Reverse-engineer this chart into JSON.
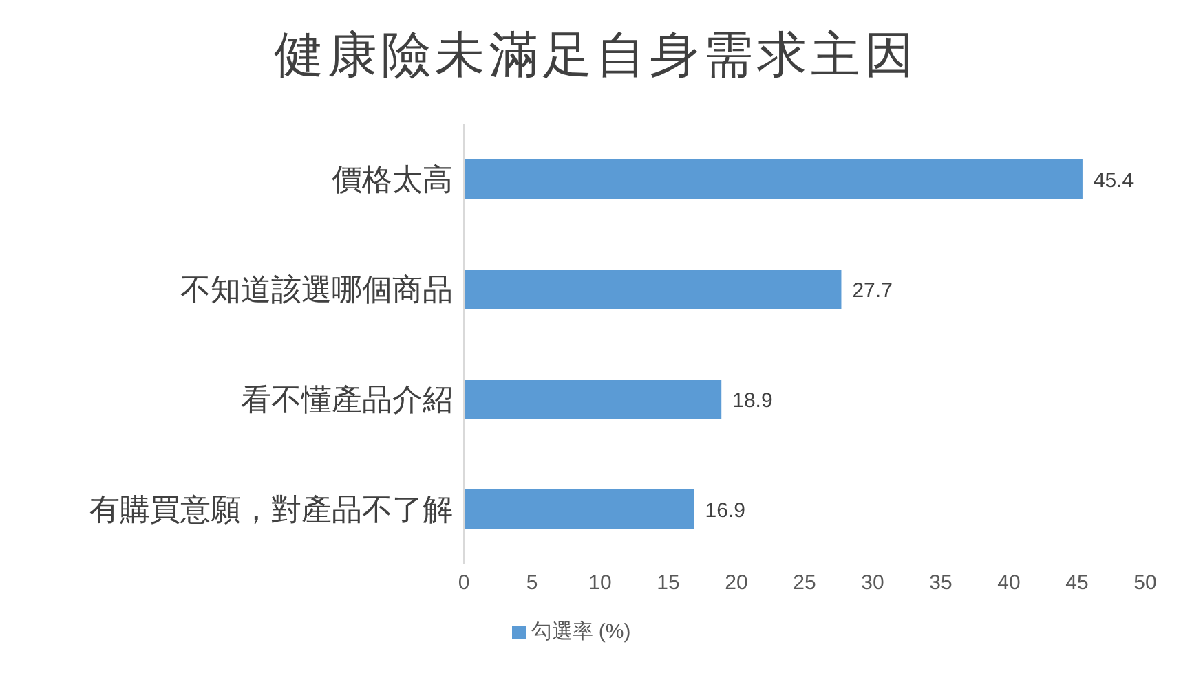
{
  "chart_data": {
    "type": "bar",
    "orientation": "horizontal",
    "title": "健康險未滿足自身需求主因",
    "categories": [
      "價格太高",
      "不知道該選哪個商品",
      "看不懂產品介紹",
      "有購買意願，對產品不了解"
    ],
    "series": [
      {
        "name": "勾選率 (%)",
        "color": "#5b9bd5",
        "values": [
          45.4,
          27.7,
          18.9,
          16.9
        ]
      }
    ],
    "xlim": [
      0,
      50
    ],
    "xticks": [
      0,
      5,
      10,
      15,
      20,
      25,
      30,
      35,
      40,
      45,
      50
    ],
    "data_labels": true,
    "legend": "bottom",
    "grid": false
  }
}
